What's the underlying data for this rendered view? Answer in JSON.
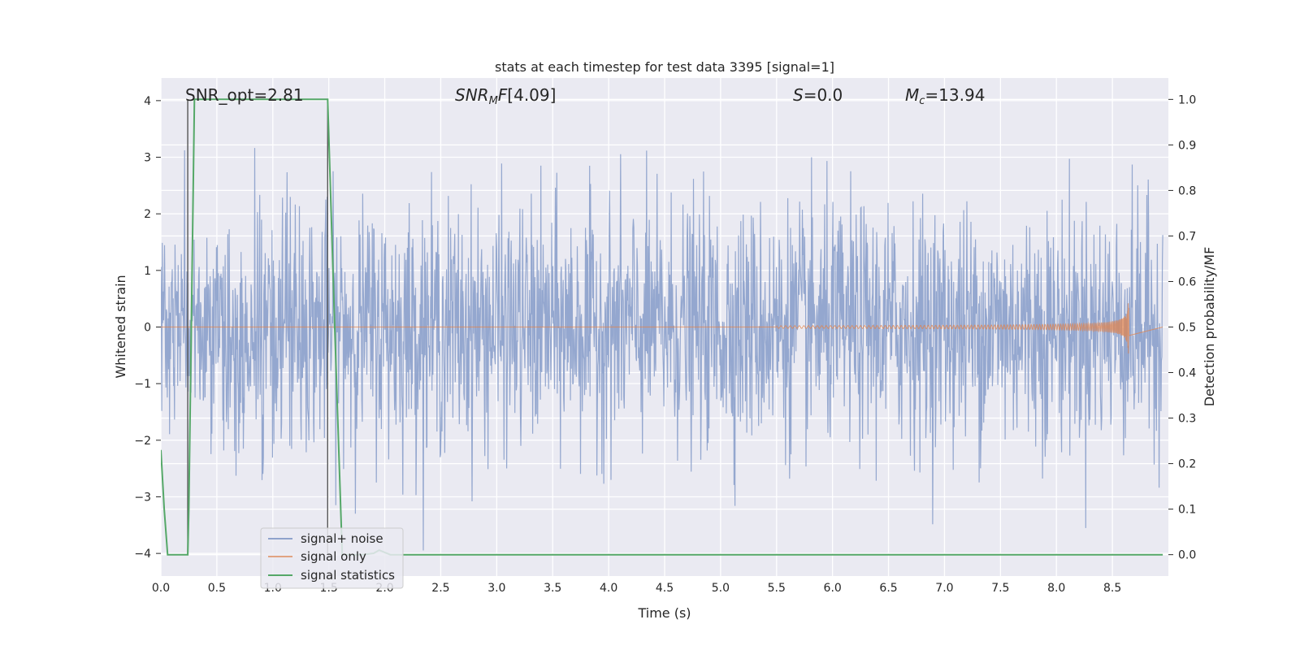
{
  "chart_data": {
    "type": "line",
    "title": "stats at each timestep for test data 3395 [signal=1]",
    "xlabel": "Time (s)",
    "ylabel": "Whitened strain",
    "y2label": "Detection probability/MF",
    "xlim": [
      0.0,
      9.0
    ],
    "ylim": [
      -4.4,
      4.4
    ],
    "y2lim": [
      -0.047,
      1.047
    ],
    "xticks": [
      "0.0",
      "0.5",
      "1.0",
      "1.5",
      "2.0",
      "2.5",
      "3.0",
      "3.5",
      "4.0",
      "4.5",
      "5.0",
      "5.5",
      "6.0",
      "6.5",
      "7.0",
      "7.5",
      "8.0",
      "8.5"
    ],
    "yticks": [
      "−4",
      "−3",
      "−2",
      "−1",
      "0",
      "1",
      "2",
      "3",
      "4"
    ],
    "y2ticks": [
      "0.0",
      "0.1",
      "0.2",
      "0.3",
      "0.4",
      "0.5",
      "0.6",
      "0.7",
      "0.8",
      "0.9",
      "1.0"
    ],
    "grid": true,
    "legend_position": "lower-left",
    "annotations": {
      "snr_opt": "SNR_opt=2.81",
      "snr_mf": "[4.09]",
      "s": "=0.0",
      "mc": "=13.94"
    },
    "vertical_markers": [
      0.24,
      1.49
    ],
    "series": [
      {
        "name": "signal+ noise",
        "color": "#8fa3cc",
        "description_values": "whitened noisy strain, envelope approx ±1.6 with excursions to about ±4",
        "noise_envelope": 1.6,
        "peak_range": [
          -4.0,
          3.6
        ]
      },
      {
        "name": "signal only",
        "color": "#dd8452",
        "chirp": {
          "start": 5.5,
          "merger": 8.65,
          "peak_amplitude": 0.55
        }
      },
      {
        "name": "signal statistics",
        "color": "#55a868",
        "axis": "right",
        "x": [
          0.0,
          0.03,
          0.06,
          0.24,
          0.25,
          0.3,
          1.49,
          1.55,
          1.62,
          1.8,
          1.9,
          1.95,
          2.0,
          2.05,
          2.2,
          3.5,
          5.0,
          7.0,
          8.95
        ],
        "y": [
          0.23,
          0.1,
          0.0,
          0.0,
          0.1,
          1.0,
          1.0,
          0.52,
          0.0,
          0.0,
          0.003,
          0.01,
          0.005,
          0.0,
          0.0,
          0.0,
          0.0,
          0.0,
          0.0
        ]
      }
    ]
  }
}
